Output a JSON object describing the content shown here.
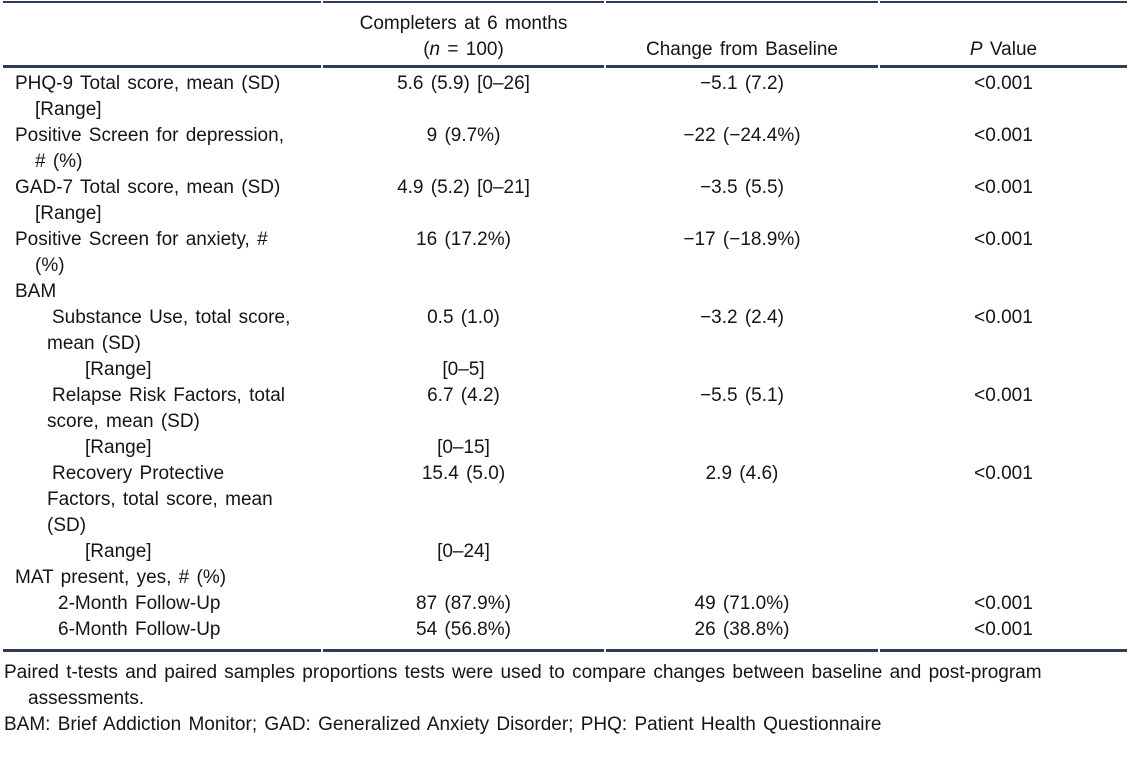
{
  "table": {
    "colors": {
      "rule": "#2e3c55",
      "text": "#151515"
    },
    "header": {
      "col2_line1": "Completers at 6 months",
      "col2_n_prefix": "(",
      "col2_n_italic": "n",
      "col2_n_suffix": " = 100)",
      "col3": "Change from Baseline",
      "col4_p_italic": "P",
      "col4_p_suffix": " Value"
    },
    "rows": [
      {
        "label_lines": [
          {
            "text": "PHQ-9 Total score, mean (SD)",
            "indent": 0
          },
          {
            "text": "[Range]",
            "indent": 1
          }
        ],
        "completers": "5.6 (5.9) [0–26]",
        "change": "−5.1 (7.2)",
        "p_value": "<0.001"
      },
      {
        "label_lines": [
          {
            "text": "Positive Screen for depression,",
            "indent": 0
          },
          {
            "text": "# (%)",
            "indent": 1
          }
        ],
        "completers": "9 (9.7%)",
        "change": "−22 (−24.4%)",
        "p_value": "<0.001"
      },
      {
        "label_lines": [
          {
            "text": "GAD-7 Total score, mean (SD)",
            "indent": 0
          },
          {
            "text": "[Range]",
            "indent": 1
          }
        ],
        "completers": "4.9 (5.2) [0–21]",
        "change": "−3.5 (5.5)",
        "p_value": "<0.001"
      },
      {
        "label_lines": [
          {
            "text": "Positive Screen for anxiety, #",
            "indent": 0
          },
          {
            "text": "(%)",
            "indent": 1
          }
        ],
        "completers": "16 (17.2%)",
        "change": "−17 (−18.9%)",
        "p_value": "<0.001"
      },
      {
        "label_lines": [
          {
            "text": "BAM",
            "indent": 0
          }
        ],
        "completers": "",
        "change": "",
        "p_value": ""
      },
      {
        "label_lines": [
          {
            "text": "Substance Use, total score,",
            "indent": 2
          },
          {
            "text": "mean (SD)",
            "indent": 3
          }
        ],
        "completers": "0.5 (1.0)",
        "change": "−3.2 (2.4)",
        "p_value": "<0.001"
      },
      {
        "label_lines": [
          {
            "text": "[Range]",
            "indent": 4
          }
        ],
        "completers": "[0–5]",
        "change": "",
        "p_value": ""
      },
      {
        "label_lines": [
          {
            "text": "Relapse Risk Factors, total",
            "indent": 2
          },
          {
            "text": "score, mean (SD)",
            "indent": 3
          }
        ],
        "completers": "6.7 (4.2)",
        "change": "−5.5 (5.1)",
        "p_value": "<0.001"
      },
      {
        "label_lines": [
          {
            "text": "[Range]",
            "indent": 4
          }
        ],
        "completers": "[0–15]",
        "change": "",
        "p_value": ""
      },
      {
        "label_lines": [
          {
            "text": "Recovery Protective",
            "indent": 2
          },
          {
            "text": "Factors, total score, mean",
            "indent": 3
          },
          {
            "text": "(SD)",
            "indent": 3
          }
        ],
        "completers": "15.4 (5.0)",
        "change": "2.9 (4.6)",
        "p_value": "<0.001"
      },
      {
        "label_lines": [
          {
            "text": "[Range]",
            "indent": 4
          }
        ],
        "completers": "[0–24]",
        "change": "",
        "p_value": ""
      },
      {
        "label_lines": [
          {
            "text": "MAT present, yes, # (%)",
            "indent": 0
          }
        ],
        "completers": "",
        "change": "",
        "p_value": ""
      },
      {
        "label_lines": [
          {
            "text": "2-Month Follow-Up",
            "indent": 5
          }
        ],
        "completers": "87 (87.9%)",
        "change": "49 (71.0%)",
        "p_value": "<0.001"
      },
      {
        "label_lines": [
          {
            "text": "6-Month Follow-Up",
            "indent": 5
          }
        ],
        "completers": "54 (56.8%)",
        "change": "26 (38.8%)",
        "p_value": "<0.001"
      }
    ],
    "footnotes": {
      "lines": [
        {
          "text": "Paired t-tests and paired samples proportions tests were used to compare changes between baseline and post-program",
          "indent": 0
        },
        {
          "text": "assessments.",
          "indent": 1
        },
        {
          "text": "BAM: Brief Addiction Monitor; GAD: Generalized Anxiety Disorder; PHQ: Patient Health Questionnaire",
          "indent": 0
        }
      ]
    }
  }
}
